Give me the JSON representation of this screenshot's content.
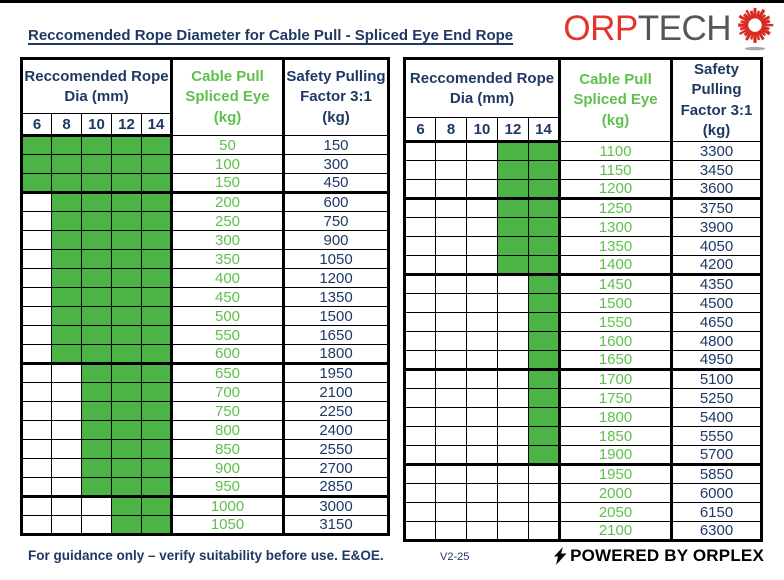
{
  "page": {
    "title": "Reccomended Rope Diameter for Cable Pull - Spliced Eye End Rope"
  },
  "logo": {
    "text_primary": "ORP",
    "text_secondary": "TECH",
    "icon": "burst-icon",
    "color_primary": "#E4342B",
    "color_secondary": "#54565A"
  },
  "colors": {
    "navy_text": "#1F3864",
    "green_cell_fill": "#4CB444",
    "green_value_text": "#5FC04E",
    "border": "#000000"
  },
  "tables": [
    {
      "name": "left",
      "header": {
        "dia_title": "Reccomended Rope\nDia (mm)",
        "dia_cols": [
          "6",
          "8",
          "10",
          "12",
          "14"
        ],
        "cable_pull_title": "Cable Pull\nSpliced Eye\n(kg)",
        "safety_title": "Safety Pulling\nFactor 3:1\n(kg)"
      },
      "rows": [
        {
          "pull": "50",
          "safety": "150",
          "green": [
            true,
            true,
            true,
            true,
            true
          ]
        },
        {
          "pull": "100",
          "safety": "300",
          "green": [
            true,
            true,
            true,
            true,
            true
          ]
        },
        {
          "pull": "150",
          "safety": "450",
          "green": [
            true,
            true,
            true,
            true,
            true
          ],
          "thick_below": true
        },
        {
          "pull": "200",
          "safety": "600",
          "green": [
            false,
            true,
            true,
            true,
            true
          ]
        },
        {
          "pull": "250",
          "safety": "750",
          "green": [
            false,
            true,
            true,
            true,
            true
          ]
        },
        {
          "pull": "300",
          "safety": "900",
          "green": [
            false,
            true,
            true,
            true,
            true
          ]
        },
        {
          "pull": "350",
          "safety": "1050",
          "green": [
            false,
            true,
            true,
            true,
            true
          ]
        },
        {
          "pull": "400",
          "safety": "1200",
          "green": [
            false,
            true,
            true,
            true,
            true
          ]
        },
        {
          "pull": "450",
          "safety": "1350",
          "green": [
            false,
            true,
            true,
            true,
            true
          ]
        },
        {
          "pull": "500",
          "safety": "1500",
          "green": [
            false,
            true,
            true,
            true,
            true
          ]
        },
        {
          "pull": "550",
          "safety": "1650",
          "green": [
            false,
            true,
            true,
            true,
            true
          ]
        },
        {
          "pull": "600",
          "safety": "1800",
          "green": [
            false,
            true,
            true,
            true,
            true
          ],
          "thick_below": true
        },
        {
          "pull": "650",
          "safety": "1950",
          "green": [
            false,
            false,
            true,
            true,
            true
          ]
        },
        {
          "pull": "700",
          "safety": "2100",
          "green": [
            false,
            false,
            true,
            true,
            true
          ]
        },
        {
          "pull": "750",
          "safety": "2250",
          "green": [
            false,
            false,
            true,
            true,
            true
          ]
        },
        {
          "pull": "800",
          "safety": "2400",
          "green": [
            false,
            false,
            true,
            true,
            true
          ]
        },
        {
          "pull": "850",
          "safety": "2550",
          "green": [
            false,
            false,
            true,
            true,
            true
          ]
        },
        {
          "pull": "900",
          "safety": "2700",
          "green": [
            false,
            false,
            true,
            true,
            true
          ]
        },
        {
          "pull": "950",
          "safety": "2850",
          "green": [
            false,
            false,
            true,
            true,
            true
          ],
          "thick_below": true
        },
        {
          "pull": "1000",
          "safety": "3000",
          "green": [
            false,
            false,
            false,
            true,
            true
          ]
        },
        {
          "pull": "1050",
          "safety": "3150",
          "green": [
            false,
            false,
            false,
            true,
            true
          ]
        }
      ]
    },
    {
      "name": "right",
      "header": {
        "dia_title": "Reccomended Rope\nDia (mm)",
        "dia_cols": [
          "6",
          "8",
          "10",
          "12",
          "14"
        ],
        "cable_pull_title": "Cable Pull\nSpliced Eye\n(kg)",
        "safety_title": "Safety Pulling\nFactor 3:1\n(kg)"
      },
      "rows": [
        {
          "pull": "1100",
          "safety": "3300",
          "green": [
            false,
            false,
            false,
            true,
            true
          ]
        },
        {
          "pull": "1150",
          "safety": "3450",
          "green": [
            false,
            false,
            false,
            true,
            true
          ]
        },
        {
          "pull": "1200",
          "safety": "3600",
          "green": [
            false,
            false,
            false,
            true,
            true
          ],
          "thick_below": true
        },
        {
          "pull": "1250",
          "safety": "3750",
          "green": [
            false,
            false,
            false,
            true,
            true
          ]
        },
        {
          "pull": "1300",
          "safety": "3900",
          "green": [
            false,
            false,
            false,
            true,
            true
          ]
        },
        {
          "pull": "1350",
          "safety": "4050",
          "green": [
            false,
            false,
            false,
            true,
            true
          ]
        },
        {
          "pull": "1400",
          "safety": "4200",
          "green": [
            false,
            false,
            false,
            true,
            true
          ],
          "thick_below": true
        },
        {
          "pull": "1450",
          "safety": "4350",
          "green": [
            false,
            false,
            false,
            false,
            true
          ]
        },
        {
          "pull": "1500",
          "safety": "4500",
          "green": [
            false,
            false,
            false,
            false,
            true
          ]
        },
        {
          "pull": "1550",
          "safety": "4650",
          "green": [
            false,
            false,
            false,
            false,
            true
          ]
        },
        {
          "pull": "1600",
          "safety": "4800",
          "green": [
            false,
            false,
            false,
            false,
            true
          ]
        },
        {
          "pull": "1650",
          "safety": "4950",
          "green": [
            false,
            false,
            false,
            false,
            true
          ],
          "thick_below": true
        },
        {
          "pull": "1700",
          "safety": "5100",
          "green": [
            false,
            false,
            false,
            false,
            true
          ]
        },
        {
          "pull": "1750",
          "safety": "5250",
          "green": [
            false,
            false,
            false,
            false,
            true
          ]
        },
        {
          "pull": "1800",
          "safety": "5400",
          "green": [
            false,
            false,
            false,
            false,
            true
          ]
        },
        {
          "pull": "1850",
          "safety": "5550",
          "green": [
            false,
            false,
            false,
            false,
            true
          ]
        },
        {
          "pull": "1900",
          "safety": "5700",
          "green": [
            false,
            false,
            false,
            false,
            true
          ],
          "thick_below": true
        },
        {
          "pull": "1950",
          "safety": "5850",
          "green": [
            false,
            false,
            false,
            false,
            false
          ]
        },
        {
          "pull": "2000",
          "safety": "6000",
          "green": [
            false,
            false,
            false,
            false,
            false
          ]
        },
        {
          "pull": "2050",
          "safety": "6150",
          "green": [
            false,
            false,
            false,
            false,
            false
          ]
        },
        {
          "pull": "2100",
          "safety": "6300",
          "green": [
            false,
            false,
            false,
            false,
            false
          ]
        }
      ]
    }
  ],
  "footer": {
    "note": "For guidance only – verify suitability before use. E&OE.",
    "version": "V2-25",
    "powered_by": "POWERED BY ORPLEX"
  }
}
